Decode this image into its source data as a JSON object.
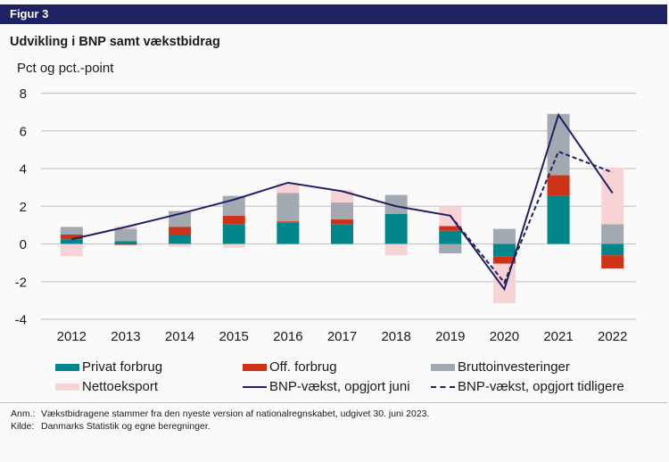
{
  "figure_label": "Figur 3",
  "title": "Udvikling i BNP samt vækstbidrag",
  "notes": {
    "anm_label": "Anm.:",
    "anm_text": "Vækstbidragene stammer fra den nyeste version af nationalregnskabet, udgivet 30. juni 2023.",
    "kilde_label": "Kilde:",
    "kilde_text": "Danmarks Statistik og egne beregninger."
  },
  "chart_data": {
    "type": "bar",
    "stacked": true,
    "title": "Udvikling i BNP samt vækstbidrag",
    "ylabel": "Pct og pct.-point",
    "xlabel": "",
    "ylim": [
      -4,
      8
    ],
    "yticks": [
      8,
      6,
      4,
      2,
      0,
      -2,
      -4
    ],
    "grid": true,
    "legend_position": "bottom",
    "categories": [
      "2012",
      "2013",
      "2014",
      "2015",
      "2016",
      "2017",
      "2018",
      "2019",
      "2020",
      "2021",
      "2022"
    ],
    "series": [
      {
        "name": "Privat forbrug",
        "kind": "bar",
        "color": "#00868a",
        "values": [
          0.25,
          0.15,
          0.45,
          1.05,
          1.15,
          1.05,
          1.6,
          0.7,
          -0.65,
          2.55,
          -0.6
        ]
      },
      {
        "name": "Off. forbrug",
        "kind": "bar",
        "color": "#cc3319",
        "values": [
          0.25,
          -0.05,
          0.45,
          0.45,
          0.05,
          0.25,
          0.0,
          0.25,
          -0.4,
          1.1,
          -0.7
        ]
      },
      {
        "name": "Bruttoinvesteringer",
        "kind": "bar",
        "color": "#a2a9b0",
        "values": [
          0.4,
          0.65,
          0.85,
          1.05,
          1.5,
          0.9,
          1.0,
          -0.5,
          0.8,
          3.25,
          1.05
        ]
      },
      {
        "name": "Nettoeksport",
        "kind": "bar",
        "color": "#f8d3d5",
        "values": [
          -0.65,
          0.15,
          -0.15,
          -0.2,
          0.5,
          0.65,
          -0.6,
          1.05,
          -2.1,
          0.0,
          3.0
        ]
      },
      {
        "name": "BNP-vækst, opgjort juni",
        "kind": "line",
        "color": "#1f2163",
        "style": "solid",
        "values": [
          0.25,
          0.9,
          1.6,
          2.35,
          3.25,
          2.8,
          2.0,
          1.5,
          -2.4,
          6.85,
          2.7
        ]
      },
      {
        "name": "BNP-vækst, opgjort tidligere",
        "kind": "line",
        "color": "#1f2163",
        "style": "dashed",
        "values": [
          null,
          null,
          null,
          null,
          null,
          null,
          null,
          1.5,
          -2.05,
          4.9,
          3.8
        ]
      }
    ]
  }
}
